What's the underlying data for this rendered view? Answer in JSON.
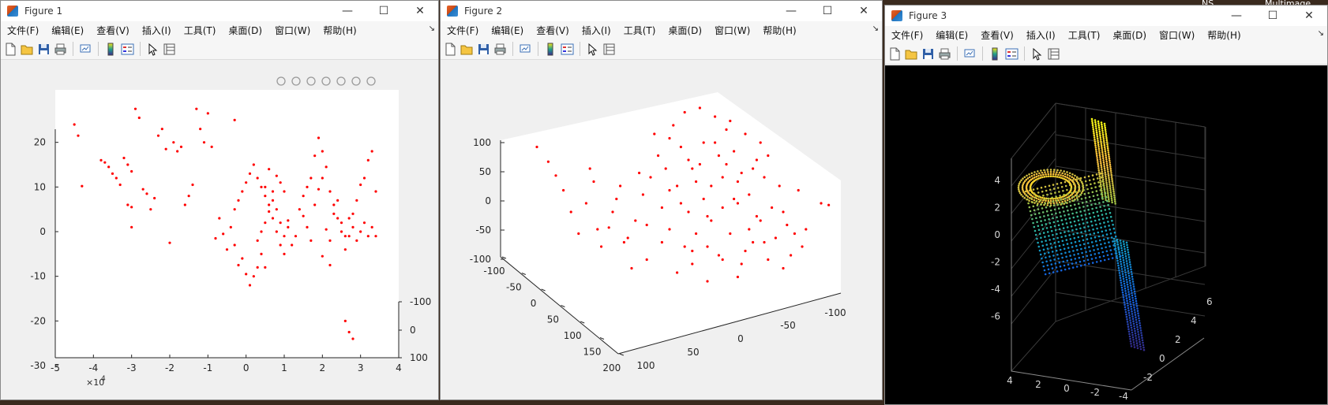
{
  "stamp": {
    "left": "NS",
    "right": "Multimage"
  },
  "menu": [
    "文件(F)",
    "编辑(E)",
    "查看(V)",
    "插入(I)",
    "工具(T)",
    "桌面(D)",
    "窗口(W)",
    "帮助(H)"
  ],
  "toolbar_icons": [
    "new-file-icon",
    "open-folder-icon",
    "save-icon",
    "print-icon",
    "|",
    "link-plot-icon",
    "|",
    "insert-colorbar-icon",
    "insert-legend-icon",
    "|",
    "edit-plot-icon",
    "property-inspector-icon"
  ],
  "windows": [
    {
      "title": "Figure 1",
      "axes_toolbar_icons": [
        "brush-icon",
        "data-tip-icon",
        "rotate-3d-icon",
        "pan-icon",
        "zoom-in-icon",
        "zoom-out-icon",
        "home-icon"
      ],
      "chart_data": {
        "type": "scatter",
        "marker_color": "#ff0000",
        "x_ticks": [
          "-5",
          "-4",
          "-3",
          "-2",
          "-1",
          "0",
          "1",
          "2",
          "3",
          "4"
        ],
        "x_exponent": "×10",
        "x_exponent_power": "4",
        "y_ticks": [
          "20",
          "10",
          "0",
          "-10",
          "-20",
          "-30"
        ],
        "z_ticks": [
          "-100",
          "0",
          "100"
        ],
        "xlim": [
          -5,
          4
        ],
        "ylim": [
          -30,
          30
        ],
        "points": [
          [
            -4.5,
            24
          ],
          [
            -4.4,
            21.5
          ],
          [
            -4.3,
            10.2
          ],
          [
            -3.8,
            16
          ],
          [
            -3.7,
            15.5
          ],
          [
            -3.6,
            14.5
          ],
          [
            -3.5,
            13
          ],
          [
            -3.4,
            12
          ],
          [
            -3.3,
            10.5
          ],
          [
            -3.2,
            16.5
          ],
          [
            -3.1,
            15
          ],
          [
            -3.0,
            13.5
          ],
          [
            -3.1,
            6
          ],
          [
            -3.0,
            5.5
          ],
          [
            -3.0,
            1
          ],
          [
            -2.9,
            27.5
          ],
          [
            -2.8,
            25.5
          ],
          [
            -2.7,
            9.5
          ],
          [
            -2.6,
            8.5
          ],
          [
            -2.5,
            5
          ],
          [
            -2.4,
            7.5
          ],
          [
            -2.3,
            21.5
          ],
          [
            -2.2,
            23
          ],
          [
            -2.1,
            18.5
          ],
          [
            -2.0,
            -2.5
          ],
          [
            -1.9,
            20
          ],
          [
            -1.8,
            18
          ],
          [
            -1.7,
            19
          ],
          [
            -1.6,
            6
          ],
          [
            -1.5,
            8
          ],
          [
            -1.4,
            10.5
          ],
          [
            -1.3,
            27.5
          ],
          [
            -1.2,
            23
          ],
          [
            -1.1,
            20
          ],
          [
            -1.0,
            26.5
          ],
          [
            -0.9,
            19
          ],
          [
            -0.8,
            -1.5
          ],
          [
            -0.7,
            3
          ],
          [
            -0.6,
            -0.5
          ],
          [
            -0.5,
            -4
          ],
          [
            -0.4,
            1
          ],
          [
            -0.3,
            25
          ],
          [
            -0.2,
            -7.5
          ],
          [
            -0.1,
            -6
          ],
          [
            0.0,
            -9.5
          ],
          [
            0.1,
            -12
          ],
          [
            0.2,
            -10
          ],
          [
            0.3,
            -8
          ],
          [
            0.4,
            0
          ],
          [
            0.5,
            2
          ],
          [
            0.6,
            4.5
          ],
          [
            0.7,
            7
          ],
          [
            0.8,
            12.5
          ],
          [
            0.9,
            11
          ],
          [
            1.0,
            9
          ],
          [
            1.1,
            2.5
          ],
          [
            1.2,
            -3
          ],
          [
            1.3,
            -1
          ],
          [
            1.4,
            5
          ],
          [
            1.5,
            8
          ],
          [
            1.6,
            10
          ],
          [
            1.7,
            12
          ],
          [
            1.8,
            17
          ],
          [
            1.9,
            21
          ],
          [
            2.0,
            18
          ],
          [
            2.1,
            14.5
          ],
          [
            2.2,
            9
          ],
          [
            2.3,
            6
          ],
          [
            2.4,
            3
          ],
          [
            2.5,
            0
          ],
          [
            2.6,
            -4
          ],
          [
            2.7,
            -1
          ],
          [
            2.8,
            4
          ],
          [
            2.9,
            7
          ],
          [
            3.0,
            10.5
          ],
          [
            3.1,
            12
          ],
          [
            3.2,
            16
          ],
          [
            3.3,
            18
          ],
          [
            3.4,
            9
          ],
          [
            0.3,
            12
          ],
          [
            0.4,
            10
          ],
          [
            0.5,
            8
          ],
          [
            0.6,
            6
          ],
          [
            0.7,
            3
          ],
          [
            0.8,
            0
          ],
          [
            0.9,
            -3
          ],
          [
            1.0,
            -5
          ],
          [
            1.1,
            1
          ],
          [
            0.2,
            15
          ],
          [
            0.1,
            13
          ],
          [
            0.0,
            11
          ],
          [
            -0.1,
            9
          ],
          [
            -0.2,
            7
          ],
          [
            -0.3,
            5
          ],
          [
            1.5,
            3.5
          ],
          [
            1.6,
            1
          ],
          [
            1.7,
            -2
          ],
          [
            1.8,
            6
          ],
          [
            1.9,
            9.5
          ],
          [
            2.0,
            12
          ],
          [
            2.1,
            0.5
          ],
          [
            2.2,
            -2
          ],
          [
            2.3,
            4
          ],
          [
            2.4,
            7
          ],
          [
            2.5,
            2
          ],
          [
            2.6,
            -1
          ],
          [
            2.7,
            3
          ],
          [
            2.8,
            1
          ],
          [
            2.9,
            -2
          ],
          [
            3.0,
            0
          ],
          [
            3.1,
            2
          ],
          [
            3.2,
            -1
          ],
          [
            3.3,
            1
          ],
          [
            3.4,
            -1
          ],
          [
            2.0,
            -5.5
          ],
          [
            2.2,
            -7.5
          ],
          [
            2.6,
            -20
          ],
          [
            2.7,
            -22.5
          ],
          [
            2.8,
            -24
          ],
          [
            0.5,
            10
          ],
          [
            0.6,
            14
          ],
          [
            0.7,
            9
          ],
          [
            0.8,
            5
          ],
          [
            0.9,
            2
          ],
          [
            1.0,
            -1
          ],
          [
            -0.3,
            -3
          ],
          [
            0.3,
            -2
          ],
          [
            0.4,
            -5
          ],
          [
            0.5,
            -8
          ]
        ]
      }
    },
    {
      "title": "Figure 2",
      "chart_data": {
        "type": "scatter",
        "marker_color": "#ff0000",
        "z_ticks": [
          "100",
          "50",
          "0",
          "-50",
          "-100"
        ],
        "x_ticks": [
          "-100",
          "-50",
          "0",
          "50",
          "100",
          "150",
          "200"
        ],
        "y_ticks": [
          "100",
          "50",
          "0",
          "-50",
          "-100"
        ],
        "points": [
          [
            -3.5,
            55
          ],
          [
            -3.2,
            38
          ],
          [
            -3.0,
            22
          ],
          [
            -2.8,
            5
          ],
          [
            -2.6,
            -20
          ],
          [
            -2.4,
            -45
          ],
          [
            -2.2,
            -10
          ],
          [
            -2.0,
            15
          ],
          [
            -1.8,
            -60
          ],
          [
            -1.6,
            -38
          ],
          [
            -1.4,
            -5
          ],
          [
            -1.2,
            -55
          ],
          [
            -1.0,
            -85
          ],
          [
            -0.8,
            25
          ],
          [
            -0.6,
            -35
          ],
          [
            -0.4,
            70
          ],
          [
            -0.2,
            -15
          ],
          [
            0.0,
            -40
          ],
          [
            0.2,
            10
          ],
          [
            0.4,
            -60
          ],
          [
            0.6,
            -80
          ],
          [
            0.8,
            35
          ],
          [
            1.0,
            -25
          ],
          [
            1.2,
            60
          ],
          [
            1.4,
            20
          ],
          [
            1.6,
            -45
          ],
          [
            1.8,
            -10
          ],
          [
            2.0,
            -65
          ],
          [
            2.2,
            30
          ],
          [
            2.4,
            -30
          ],
          [
            2.6,
            45
          ],
          [
            2.8,
            -50
          ],
          [
            3.0,
            -20
          ],
          [
            3.2,
            -70
          ],
          [
            3.4,
            5
          ],
          [
            3.6,
            -40
          ],
          [
            4.0,
            -10
          ],
          [
            4.2,
            -12
          ],
          [
            0.1,
            80
          ],
          [
            0.3,
            55
          ],
          [
            0.5,
            40
          ],
          [
            0.7,
            15
          ],
          [
            0.9,
            -5
          ],
          [
            1.1,
            -30
          ],
          [
            1.3,
            -70
          ],
          [
            1.5,
            75
          ],
          [
            1.7,
            50
          ],
          [
            1.9,
            25
          ],
          [
            2.1,
            0
          ],
          [
            2.3,
            -25
          ],
          [
            2.5,
            -55
          ],
          [
            0.0,
            65
          ],
          [
            -0.3,
            45
          ],
          [
            -0.5,
            20
          ],
          [
            -0.7,
            0
          ],
          [
            -0.9,
            -30
          ],
          [
            -1.1,
            -50
          ],
          [
            0.2,
            -90
          ],
          [
            0.6,
            -65
          ],
          [
            1.0,
            -100
          ],
          [
            1.4,
            -75
          ],
          [
            1.8,
            -95
          ],
          [
            0.4,
            95
          ],
          [
            0.8,
            100
          ],
          [
            1.2,
            90
          ],
          [
            1.6,
            85
          ],
          [
            2.0,
            70
          ],
          [
            2.4,
            60
          ],
          [
            0.3,
            -10
          ],
          [
            0.7,
            -45
          ],
          [
            1.1,
            10
          ],
          [
            1.5,
            35
          ],
          [
            1.9,
            -80
          ],
          [
            2.3,
            40
          ],
          [
            2.7,
            -15
          ],
          [
            3.1,
            -35
          ],
          [
            -0.1,
            30
          ],
          [
            0.5,
            -20
          ],
          [
            0.9,
            60
          ],
          [
            1.3,
            45
          ],
          [
            1.7,
            -5
          ],
          [
            2.1,
            -40
          ],
          [
            2.5,
            20
          ],
          [
            2.9,
            10
          ],
          [
            -0.6,
            -75
          ],
          [
            -1.3,
            10
          ],
          [
            -1.5,
            -20
          ],
          [
            -1.9,
            -40
          ],
          [
            -2.1,
            30
          ],
          [
            -0.2,
            -55
          ],
          [
            0.0,
            5
          ],
          [
            0.6,
            30
          ],
          [
            1.0,
            -60
          ],
          [
            1.4,
            -15
          ],
          [
            1.8,
            15
          ],
          [
            2.2,
            -55
          ],
          [
            2.6,
            -75
          ],
          [
            3.0,
            -85
          ],
          [
            3.3,
            -45
          ],
          [
            3.5,
            -60
          ]
        ]
      }
    },
    {
      "title": "Figure 3",
      "chart_data": {
        "type": "scatter3d",
        "z_ticks": [
          "4",
          "2",
          "0",
          "-2",
          "-4",
          "-6"
        ],
        "x_ticks": [
          "4",
          "2",
          "0",
          "-2",
          "-4"
        ],
        "y_ticks": [
          "-2",
          "0",
          "2",
          "4",
          "6"
        ]
      }
    }
  ]
}
